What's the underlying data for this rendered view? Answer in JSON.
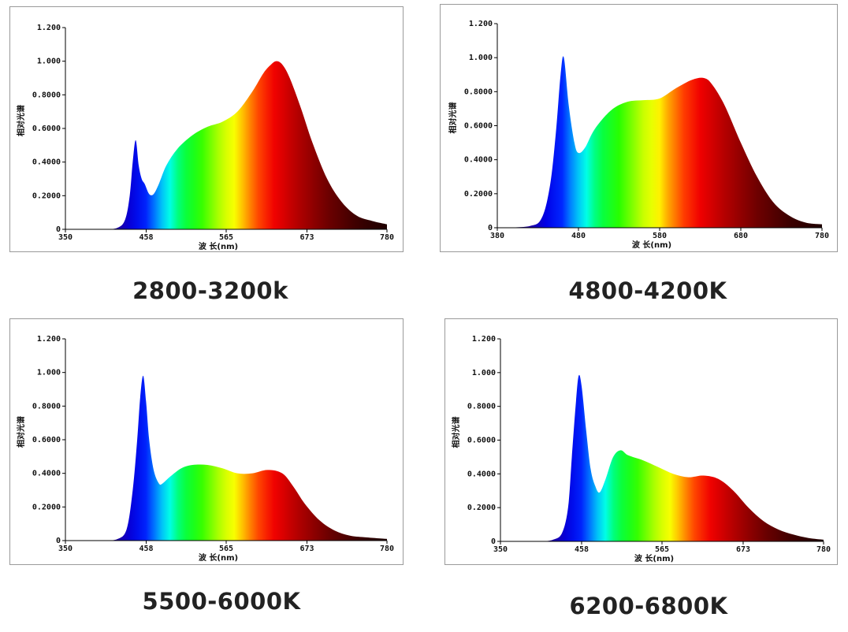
{
  "chart_data": [
    {
      "type": "area",
      "title": "2800-3200k",
      "xlabel": "波 长(nm)",
      "ylabel": "相对光谱",
      "xlim": [
        350,
        780
      ],
      "ylim": [
        0,
        1.2
      ],
      "xticks": [
        "350",
        "458",
        "565",
        "673",
        "780"
      ],
      "xtick_values": [
        350,
        458,
        565,
        673,
        780
      ],
      "yticks": [
        "0",
        "0.2000",
        "0.4000",
        "0.6000",
        "0.8000",
        "1.000",
        "1.200"
      ],
      "x": [
        350,
        400,
        420,
        430,
        436,
        440,
        444,
        448,
        452,
        456,
        462,
        468,
        475,
        485,
        500,
        520,
        540,
        560,
        580,
        600,
        615,
        625,
        632,
        640,
        650,
        665,
        680,
        700,
        720,
        740,
        760,
        780
      ],
      "values": [
        0,
        0,
        0.01,
        0.06,
        0.2,
        0.4,
        0.53,
        0.38,
        0.3,
        0.27,
        0.21,
        0.21,
        0.27,
        0.38,
        0.48,
        0.56,
        0.61,
        0.64,
        0.7,
        0.82,
        0.93,
        0.98,
        1.0,
        0.98,
        0.9,
        0.72,
        0.52,
        0.3,
        0.16,
        0.08,
        0.05,
        0.03
      ]
    },
    {
      "type": "area",
      "title": "4800-4200K",
      "xlabel": "波 长(nm)",
      "ylabel": "相对光谱",
      "xlim": [
        380,
        780
      ],
      "ylim": [
        0,
        1.2
      ],
      "xticks": [
        "380",
        "480",
        "580",
        "680",
        "780"
      ],
      "xtick_values": [
        380,
        480,
        580,
        680,
        780
      ],
      "yticks": [
        "0",
        "0.2000",
        "0.4000",
        "0.6000",
        "0.8000",
        "1.000",
        "1.200"
      ],
      "x": [
        380,
        420,
        435,
        445,
        452,
        458,
        462,
        468,
        475,
        480,
        488,
        500,
        520,
        540,
        560,
        580,
        600,
        620,
        635,
        645,
        660,
        680,
        700,
        720,
        740,
        760,
        780
      ],
      "values": [
        0,
        0.01,
        0.06,
        0.25,
        0.55,
        0.9,
        1.0,
        0.72,
        0.5,
        0.44,
        0.47,
        0.58,
        0.69,
        0.74,
        0.75,
        0.76,
        0.82,
        0.87,
        0.88,
        0.84,
        0.72,
        0.5,
        0.3,
        0.15,
        0.07,
        0.03,
        0.02
      ]
    },
    {
      "type": "area",
      "title": "5500-6000K",
      "xlabel": "波 长(nm)",
      "ylabel": "相对光谱",
      "xlim": [
        350,
        780
      ],
      "ylim": [
        0,
        1.2
      ],
      "xticks": [
        "350",
        "458",
        "565",
        "673",
        "780"
      ],
      "xtick_values": [
        350,
        458,
        565,
        673,
        780
      ],
      "yticks": [
        "0",
        "0.2000",
        "0.4000",
        "0.6000",
        "0.8000",
        "1.000",
        "1.200"
      ],
      "x": [
        350,
        400,
        420,
        432,
        440,
        446,
        450,
        454,
        458,
        462,
        468,
        475,
        480,
        490,
        505,
        520,
        540,
        560,
        580,
        600,
        620,
        640,
        655,
        670,
        690,
        710,
        730,
        750,
        780
      ],
      "values": [
        0,
        0,
        0.01,
        0.07,
        0.3,
        0.6,
        0.85,
        0.98,
        0.82,
        0.6,
        0.42,
        0.34,
        0.34,
        0.38,
        0.43,
        0.45,
        0.45,
        0.43,
        0.4,
        0.4,
        0.42,
        0.4,
        0.32,
        0.22,
        0.12,
        0.06,
        0.03,
        0.02,
        0.01
      ]
    },
    {
      "type": "area",
      "title": "6200-6800K",
      "xlabel": "波 长(nm)",
      "ylabel": "相对光谱",
      "xlim": [
        350,
        780
      ],
      "ylim": [
        0,
        1.2
      ],
      "xticks": [
        "350",
        "458",
        "565",
        "673",
        "780"
      ],
      "xtick_values": [
        350,
        458,
        565,
        673,
        780
      ],
      "yticks": [
        "0",
        "0.2000",
        "0.4000",
        "0.6000",
        "0.8000",
        "1.000",
        "1.200"
      ],
      "x": [
        350,
        400,
        420,
        432,
        440,
        445,
        450,
        454,
        458,
        464,
        470,
        476,
        482,
        490,
        500,
        510,
        520,
        540,
        560,
        580,
        600,
        620,
        640,
        660,
        680,
        700,
        720,
        740,
        760,
        780
      ],
      "values": [
        0,
        0,
        0.01,
        0.05,
        0.2,
        0.5,
        0.8,
        0.98,
        0.92,
        0.66,
        0.43,
        0.33,
        0.29,
        0.37,
        0.5,
        0.54,
        0.51,
        0.48,
        0.44,
        0.4,
        0.38,
        0.39,
        0.37,
        0.3,
        0.2,
        0.12,
        0.07,
        0.04,
        0.02,
        0.01
      ]
    }
  ]
}
